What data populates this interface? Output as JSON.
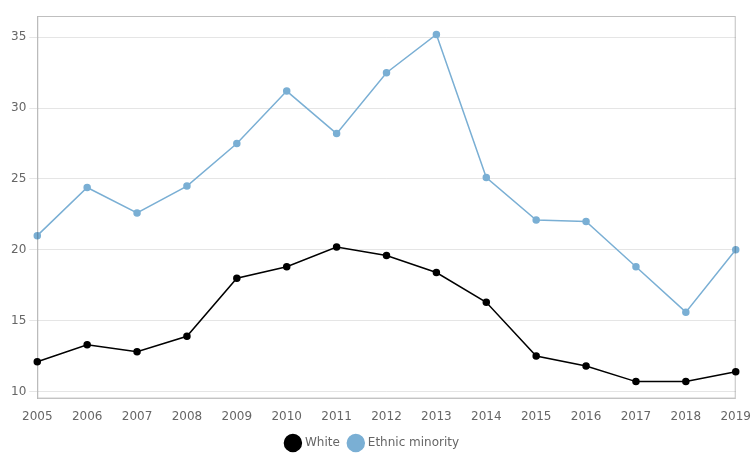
{
  "chart_data": {
    "type": "line",
    "categories": [
      "2005",
      "2006",
      "2007",
      "2008",
      "2009",
      "2010",
      "2011",
      "2012",
      "2013",
      "2014",
      "2015",
      "2016",
      "2017",
      "2018",
      "2019"
    ],
    "series": [
      {
        "name": "White",
        "color": "#000000",
        "values": [
          12.1,
          13.3,
          12.8,
          13.9,
          18.0,
          18.8,
          20.2,
          19.6,
          18.4,
          16.3,
          12.5,
          11.8,
          10.7,
          10.7,
          11.4
        ]
      },
      {
        "name": "Ethnic minority",
        "color": "#7aafd4",
        "values": [
          21.0,
          24.4,
          22.6,
          24.5,
          27.5,
          31.2,
          28.2,
          32.5,
          35.2,
          25.1,
          22.1,
          22.0,
          18.8,
          15.6,
          20.0
        ]
      }
    ],
    "ylim": [
      9.5,
      36.5
    ],
    "yticks": [
      10,
      15,
      20,
      25,
      30,
      35
    ],
    "grid": true,
    "legend": "bottom",
    "marker": "o"
  }
}
